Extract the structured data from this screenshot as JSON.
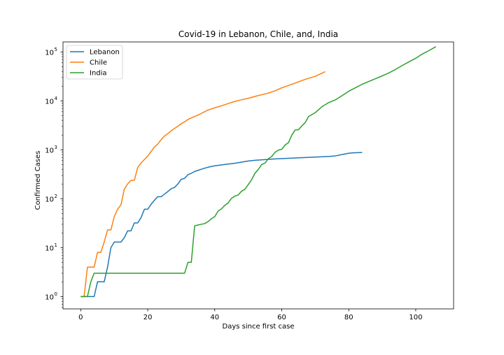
{
  "chart_data": {
    "type": "line",
    "title": "Covid-19 in Lebanon, Chile, and, India",
    "xlabel": "Days since first case",
    "ylabel": "Confirmed Cases",
    "yscale": "log",
    "xlim": [
      -5.3,
      111.3
    ],
    "ylim": [
      0.56,
      160000
    ],
    "xticks": [
      0,
      20,
      40,
      60,
      80,
      100
    ],
    "yticks": [
      {
        "value": 1,
        "label": "10",
        "exp": "0"
      },
      {
        "value": 10,
        "label": "10",
        "exp": "1"
      },
      {
        "value": 100,
        "label": "10",
        "exp": "2"
      },
      {
        "value": 1000,
        "label": "10",
        "exp": "3"
      },
      {
        "value": 10000,
        "label": "10",
        "exp": "4"
      },
      {
        "value": 100000,
        "label": "10",
        "exp": "5"
      }
    ],
    "grid": false,
    "legend": "top-left",
    "series": [
      {
        "name": "Lebanon",
        "color": "#1f77b4",
        "x": [
          0,
          1,
          2,
          3,
          4,
          5,
          6,
          7,
          8,
          9,
          10,
          11,
          12,
          13,
          14,
          15,
          16,
          17,
          18,
          19,
          20,
          21,
          22,
          23,
          24,
          25,
          26,
          27,
          28,
          29,
          30,
          31,
          32,
          33,
          34,
          35,
          36,
          37,
          38,
          40,
          42,
          44,
          46,
          48,
          50,
          52,
          55,
          58,
          62,
          66,
          70,
          74,
          76,
          78,
          80,
          82,
          84
        ],
        "y": [
          1,
          1,
          1,
          1,
          1,
          2,
          2,
          2,
          4,
          10,
          13,
          13,
          13,
          16,
          22,
          22,
          32,
          32,
          41,
          61,
          61,
          77,
          93,
          110,
          110,
          124,
          140,
          160,
          170,
          200,
          250,
          260,
          310,
          330,
          360,
          380,
          400,
          420,
          440,
          470,
          490,
          510,
          530,
          560,
          590,
          610,
          630,
          650,
          670,
          690,
          710,
          730,
          750,
          800,
          850,
          870,
          880
        ]
      },
      {
        "name": "Chile",
        "color": "#ff7f0e",
        "x": [
          0,
          1,
          2,
          3,
          4,
          5,
          6,
          7,
          8,
          9,
          10,
          11,
          12,
          13,
          14,
          15,
          16,
          17,
          18,
          19,
          20,
          21,
          22,
          23,
          24,
          25,
          26,
          27,
          28,
          29,
          30,
          31,
          32,
          33,
          34,
          35,
          36,
          38,
          40,
          42,
          44,
          46,
          48,
          50,
          52,
          54,
          56,
          58,
          60,
          62,
          64,
          66,
          68,
          70,
          72,
          73
        ],
        "y": [
          1,
          1,
          4,
          4,
          4,
          8,
          8,
          13,
          23,
          23,
          43,
          61,
          75,
          156,
          201,
          238,
          238,
          434,
          537,
          632,
          746,
          922,
          1142,
          1306,
          1610,
          1909,
          2139,
          2449,
          2738,
          3031,
          3404,
          3737,
          4161,
          4471,
          4815,
          5116,
          5546,
          6501,
          7213,
          7917,
          8807,
          9730,
          10507,
          11296,
          12306,
          13331,
          14365,
          16023,
          18435,
          20643,
          23048,
          25972,
          28866,
          31721,
          36648,
          39542
        ]
      },
      {
        "name": "India",
        "color": "#2ca02c",
        "x": [
          0,
          1,
          2,
          3,
          4,
          5,
          10,
          15,
          20,
          25,
          30,
          31,
          32,
          33,
          34,
          35,
          36,
          37,
          38,
          39,
          40,
          41,
          42,
          43,
          44,
          45,
          46,
          47,
          48,
          49,
          50,
          51,
          52,
          53,
          54,
          55,
          56,
          57,
          58,
          59,
          60,
          61,
          62,
          63,
          64,
          65,
          66,
          67,
          68,
          70,
          72,
          74,
          76,
          78,
          80,
          82,
          84,
          86,
          88,
          90,
          92,
          94,
          96,
          98,
          100,
          102,
          104,
          106
        ],
        "y": [
          1,
          1,
          1,
          2,
          3,
          3,
          3,
          3,
          3,
          3,
          3,
          3,
          5,
          5,
          28,
          29,
          30,
          31,
          34,
          39,
          43,
          56,
          62,
          73,
          82,
          102,
          113,
          119,
          142,
          156,
          194,
          244,
          330,
          396,
          499,
          536,
          657,
          727,
          887,
          987,
          1024,
          1251,
          1397,
          1998,
          2543,
          2567,
          3082,
          3588,
          4778,
          5734,
          7600,
          9205,
          10453,
          12759,
          15712,
          18539,
          21797,
          24936,
          28380,
          32335,
          37257,
          43981,
          52987,
          62808,
          74292,
          90927,
          107000,
          128000
        ]
      }
    ]
  }
}
